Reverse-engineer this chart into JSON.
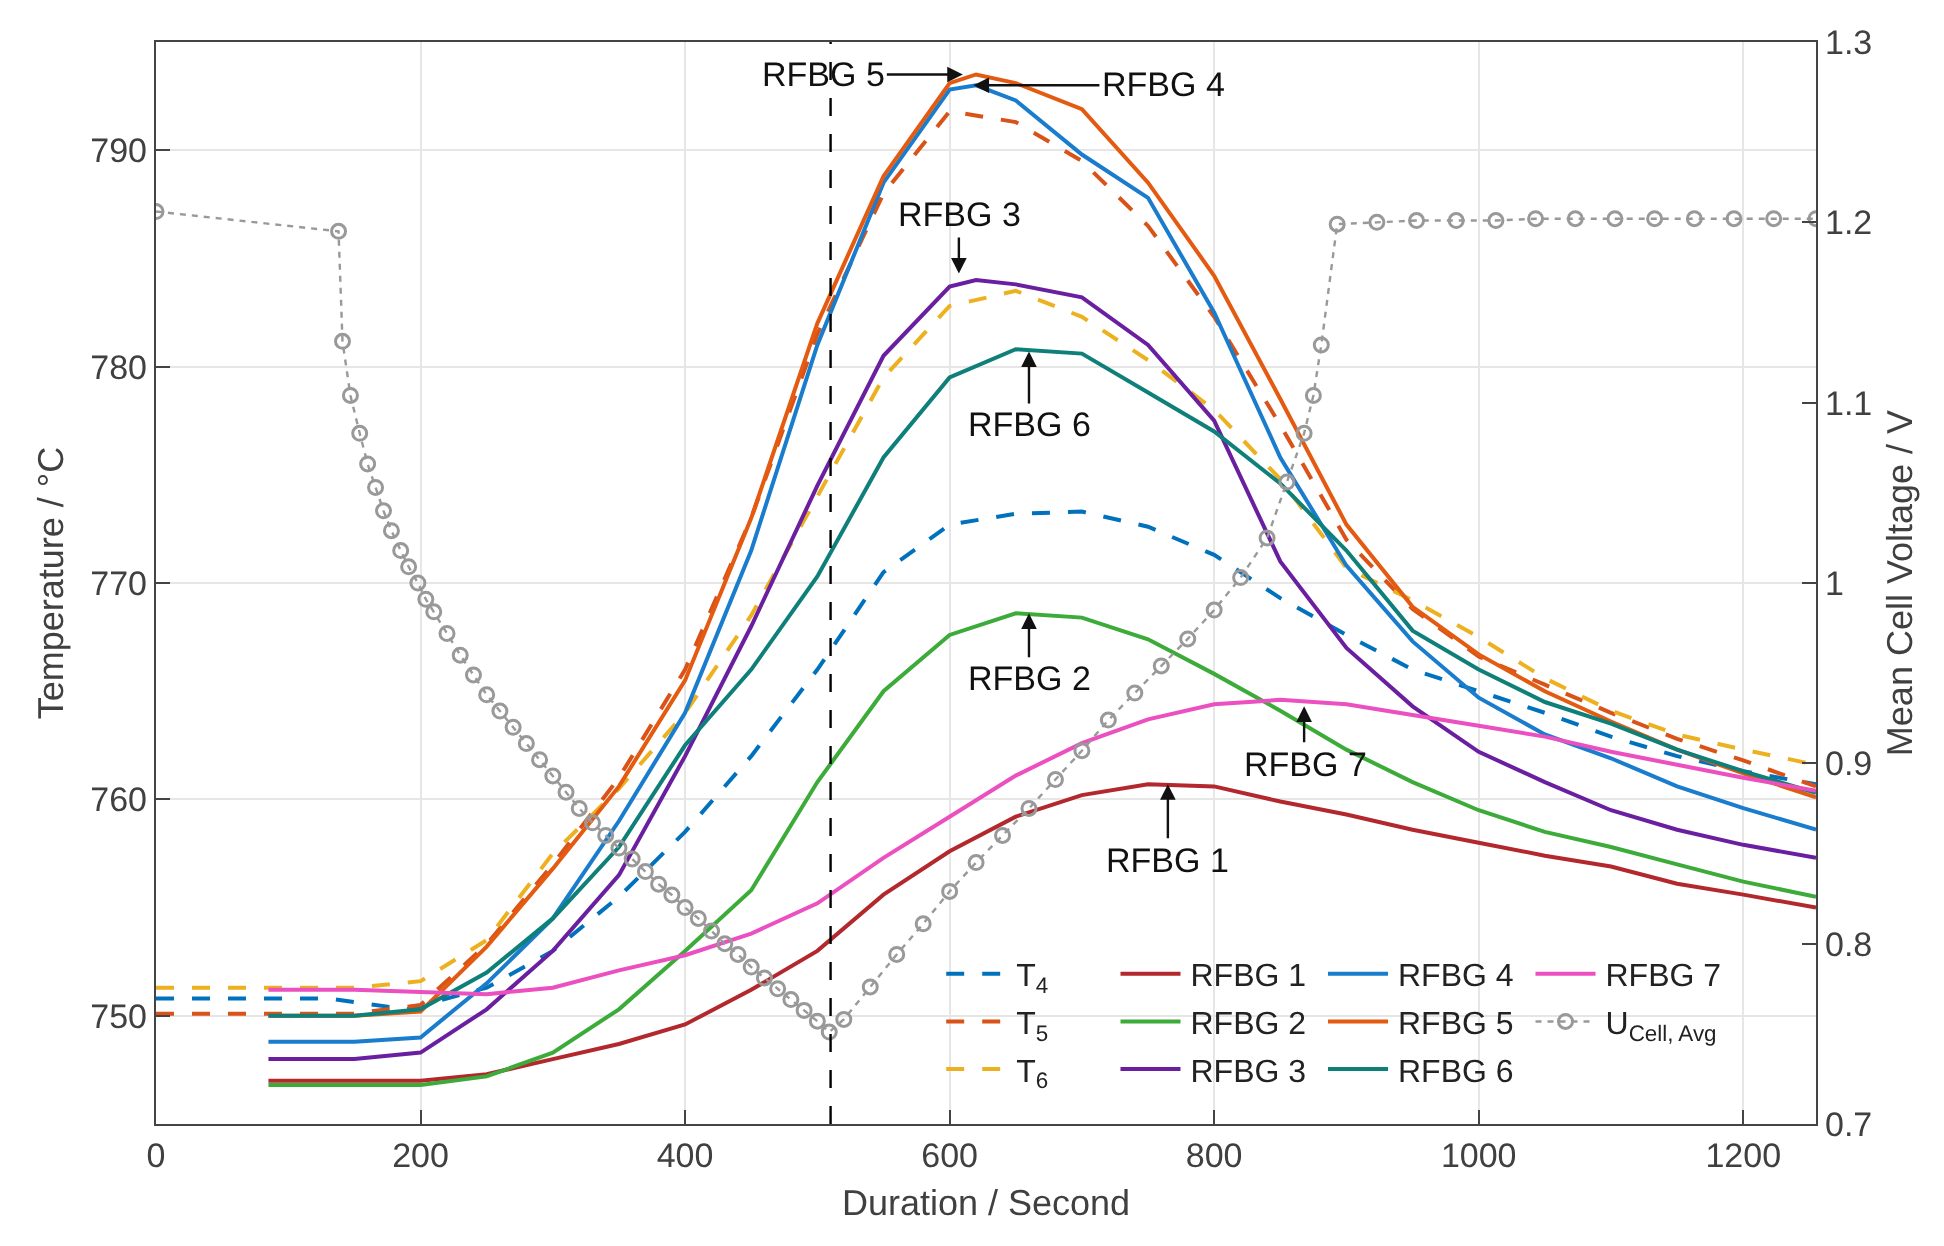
{
  "chart_data": {
    "type": "line",
    "xlabel": "Duration / Second",
    "ylabel": "Temperature / °C",
    "y2label": "Mean Cell Voltage / V",
    "xlim": [
      0,
      1255
    ],
    "xticks": [
      0,
      200,
      400,
      600,
      800,
      1000,
      1200
    ],
    "ylim": [
      745,
      795
    ],
    "yticks": [
      750,
      760,
      770,
      780,
      790
    ],
    "y2lim": [
      0.7,
      1.3
    ],
    "y2ticks": [
      0.7,
      0.8,
      0.9,
      1,
      1.1,
      1.2,
      1.3
    ],
    "grid": true,
    "legend": "bottom right",
    "marker": "none",
    "ref_lines": [
      {
        "axis": "x",
        "value": 510,
        "color": "#000000",
        "line_style": "dashed"
      }
    ],
    "annotations": [
      {
        "text": "RFBG 5",
        "x": 610,
        "y": 793.5
      },
      {
        "text": "RFBG 4",
        "x": 618,
        "y": 793.0
      },
      {
        "text": "RFBG 3",
        "x": 607,
        "y": 784.3
      },
      {
        "text": "RFBG 6",
        "x": 660,
        "y": 780.7
      },
      {
        "text": "RFBG 2",
        "x": 660,
        "y": 768.6
      },
      {
        "text": "RFBG 7",
        "x": 868,
        "y": 764.3
      },
      {
        "text": "RFBG 1",
        "x": 765,
        "y": 760.7
      }
    ],
    "series": [
      {
        "name": "T$_{4}$",
        "color": "#0072bd",
        "line_style": "dashed",
        "x": [
          0,
          130,
          190,
          250,
          300,
          350,
          400,
          450,
          500,
          550,
          600,
          650,
          700,
          750,
          800,
          850,
          900,
          950,
          1000,
          1050,
          1100,
          1150,
          1200,
          1255
        ],
        "values": [
          750.8,
          750.8,
          750.3,
          751.3,
          753,
          755.5,
          758.5,
          762,
          766,
          770.5,
          772.7,
          773.2,
          773.3,
          772.6,
          771.3,
          769.3,
          767.6,
          766,
          765,
          764,
          762.9,
          762,
          761.3,
          760.7
        ]
      },
      {
        "name": "T$_{5}$",
        "color": "#d95319",
        "line_style": "dashed",
        "x": [
          0,
          150,
          200,
          250,
          300,
          350,
          400,
          450,
          500,
          550,
          600,
          650,
          700,
          750,
          800,
          850,
          900,
          950,
          1000,
          1050,
          1100,
          1150,
          1200,
          1255
        ],
        "values": [
          750.1,
          750.1,
          750.5,
          753.3,
          757,
          761,
          766,
          773,
          781.5,
          788,
          791.8,
          791.3,
          789.5,
          786.5,
          782.3,
          777.3,
          772,
          768.8,
          766.6,
          765.3,
          764,
          762.8,
          761.8,
          760.6
        ]
      },
      {
        "name": "T$_{6}$",
        "color": "#edb120",
        "line_style": "dashed",
        "x": [
          0,
          150,
          200,
          250,
          300,
          350,
          400,
          450,
          500,
          550,
          600,
          650,
          700,
          750,
          800,
          850,
          900,
          950,
          1000,
          1050,
          1100,
          1150,
          1200,
          1255
        ],
        "values": [
          751.3,
          751.3,
          751.6,
          753.5,
          757.5,
          760.5,
          764,
          768.5,
          774,
          779.5,
          782.8,
          783.5,
          782.3,
          780.3,
          778,
          774.8,
          770.7,
          769.2,
          767.5,
          765.6,
          764.1,
          763,
          762.3,
          761.6
        ]
      },
      {
        "name": "RFBG 1",
        "color": "#b3282d",
        "line_style": "solid",
        "x": [
          85,
          150,
          200,
          250,
          300,
          350,
          400,
          450,
          500,
          550,
          600,
          650,
          700,
          750,
          800,
          850,
          900,
          950,
          1000,
          1050,
          1100,
          1150,
          1200,
          1255
        ],
        "values": [
          747,
          747,
          747,
          747.3,
          748,
          748.7,
          749.6,
          751.2,
          753,
          755.6,
          757.6,
          759.2,
          760.2,
          760.7,
          760.6,
          759.9,
          759.3,
          758.6,
          758,
          757.4,
          756.9,
          756.1,
          755.6,
          755
        ]
      },
      {
        "name": "RFBG 2",
        "color": "#3cab3a",
        "line_style": "solid",
        "x": [
          85,
          150,
          200,
          250,
          300,
          350,
          400,
          450,
          500,
          550,
          600,
          650,
          700,
          750,
          800,
          850,
          900,
          950,
          1000,
          1050,
          1100,
          1150,
          1200,
          1255
        ],
        "values": [
          746.8,
          746.8,
          746.8,
          747.2,
          748.3,
          750.3,
          753,
          755.8,
          760.8,
          765,
          767.6,
          768.6,
          768.4,
          767.4,
          765.8,
          764.1,
          762.3,
          760.8,
          759.5,
          758.5,
          757.8,
          757,
          756.2,
          755.5
        ]
      },
      {
        "name": "RFBG 3",
        "color": "#6a1fa0",
        "line_style": "solid",
        "x": [
          85,
          150,
          200,
          250,
          300,
          350,
          400,
          450,
          500,
          550,
          600,
          620,
          650,
          700,
          750,
          800,
          850,
          900,
          950,
          1000,
          1050,
          1100,
          1150,
          1200,
          1255
        ],
        "values": [
          748,
          748,
          748.3,
          750.3,
          753,
          756.5,
          762,
          768,
          774.5,
          780.5,
          783.7,
          784,
          783.8,
          783.2,
          781,
          777.5,
          771,
          767,
          764.3,
          762.2,
          760.8,
          759.5,
          758.6,
          757.9,
          757.3
        ]
      },
      {
        "name": "RFBG 4",
        "color": "#1a7ccc",
        "line_style": "solid",
        "x": [
          85,
          150,
          200,
          250,
          300,
          350,
          400,
          450,
          500,
          550,
          600,
          620,
          650,
          700,
          750,
          800,
          850,
          900,
          950,
          1000,
          1050,
          1100,
          1150,
          1200,
          1255
        ],
        "values": [
          748.8,
          748.8,
          749,
          751.5,
          754.5,
          759,
          764,
          771.5,
          781,
          788.5,
          792.8,
          793,
          792.3,
          789.8,
          787.8,
          782.5,
          775.8,
          770.8,
          767.3,
          764.7,
          763,
          761.9,
          760.6,
          759.6,
          758.6
        ]
      },
      {
        "name": "RFBG 5",
        "color": "#e35a10",
        "line_style": "solid",
        "x": [
          85,
          150,
          200,
          250,
          300,
          350,
          400,
          450,
          500,
          550,
          600,
          620,
          650,
          700,
          750,
          800,
          850,
          900,
          950,
          1000,
          1050,
          1100,
          1150,
          1200,
          1255
        ],
        "values": [
          750,
          750,
          750.2,
          753.2,
          756.8,
          760.6,
          765.5,
          773,
          782,
          788.8,
          793.1,
          793.5,
          793.1,
          791.9,
          788.5,
          784.2,
          778.5,
          772.7,
          768.9,
          766.7,
          765,
          763.6,
          762.3,
          761.2,
          760.1
        ]
      },
      {
        "name": "RFBG 6",
        "color": "#0f7f7a",
        "line_style": "solid",
        "x": [
          85,
          150,
          200,
          250,
          300,
          350,
          400,
          450,
          500,
          550,
          600,
          650,
          700,
          750,
          800,
          850,
          900,
          950,
          1000,
          1050,
          1100,
          1150,
          1200,
          1255
        ],
        "values": [
          750,
          750,
          750.3,
          752,
          754.5,
          757.8,
          762.5,
          766,
          770.3,
          775.8,
          779.5,
          780.8,
          780.6,
          778.8,
          777,
          774.6,
          771.5,
          767.8,
          766,
          764.5,
          763.5,
          762.3,
          761.3,
          760.3
        ]
      },
      {
        "name": "RFBG 7",
        "color": "#ec4fbf",
        "line_style": "solid",
        "x": [
          85,
          150,
          200,
          250,
          300,
          350,
          400,
          450,
          500,
          550,
          600,
          650,
          700,
          750,
          800,
          850,
          900,
          950,
          1000,
          1050,
          1100,
          1150,
          1200,
          1255
        ],
        "values": [
          751.2,
          751.2,
          751.1,
          751,
          751.3,
          752.1,
          752.8,
          753.8,
          755.2,
          757.3,
          759.2,
          761.1,
          762.6,
          763.7,
          764.4,
          764.6,
          764.4,
          763.9,
          763.4,
          762.9,
          762.2,
          761.6,
          761,
          760.4
        ]
      },
      {
        "name": "U$_{Cell, Avg}$",
        "color": "#999999",
        "line_style": "dotted",
        "marker": "circle",
        "axis": "y2",
        "x": [
          0,
          138,
          141,
          147,
          154,
          160,
          166,
          172,
          178,
          185,
          191,
          198,
          204,
          210,
          220,
          230,
          240,
          250,
          260,
          270,
          280,
          290,
          300,
          310,
          320,
          330,
          340,
          350,
          360,
          370,
          380,
          390,
          400,
          410,
          420,
          430,
          440,
          450,
          460,
          470,
          480,
          490,
          500,
          509,
          520,
          540,
          560,
          580,
          600,
          620,
          640,
          660,
          680,
          700,
          720,
          740,
          760,
          780,
          800,
          820,
          840,
          855,
          868,
          875,
          881,
          893,
          923,
          953,
          983,
          1013,
          1043,
          1073,
          1103,
          1133,
          1163,
          1193,
          1223,
          1255
        ],
        "values": [
          1.206,
          1.195,
          1.134,
          1.104,
          1.083,
          1.066,
          1.053,
          1.04,
          1.029,
          1.018,
          1.009,
          1.0,
          0.991,
          0.984,
          0.972,
          0.96,
          0.949,
          0.938,
          0.929,
          0.92,
          0.911,
          0.902,
          0.893,
          0.884,
          0.875,
          0.867,
          0.86,
          0.853,
          0.847,
          0.84,
          0.833,
          0.827,
          0.82,
          0.814,
          0.807,
          0.8,
          0.794,
          0.787,
          0.781,
          0.775,
          0.769,
          0.763,
          0.757,
          0.751,
          0.758,
          0.776,
          0.794,
          0.811,
          0.829,
          0.845,
          0.86,
          0.875,
          0.891,
          0.907,
          0.924,
          0.939,
          0.954,
          0.969,
          0.985,
          1.003,
          1.025,
          1.056,
          1.083,
          1.104,
          1.132,
          1.199,
          1.2,
          1.201,
          1.201,
          1.201,
          1.202,
          1.202,
          1.202,
          1.202,
          1.202,
          1.202,
          1.202,
          1.202
        ]
      }
    ]
  }
}
